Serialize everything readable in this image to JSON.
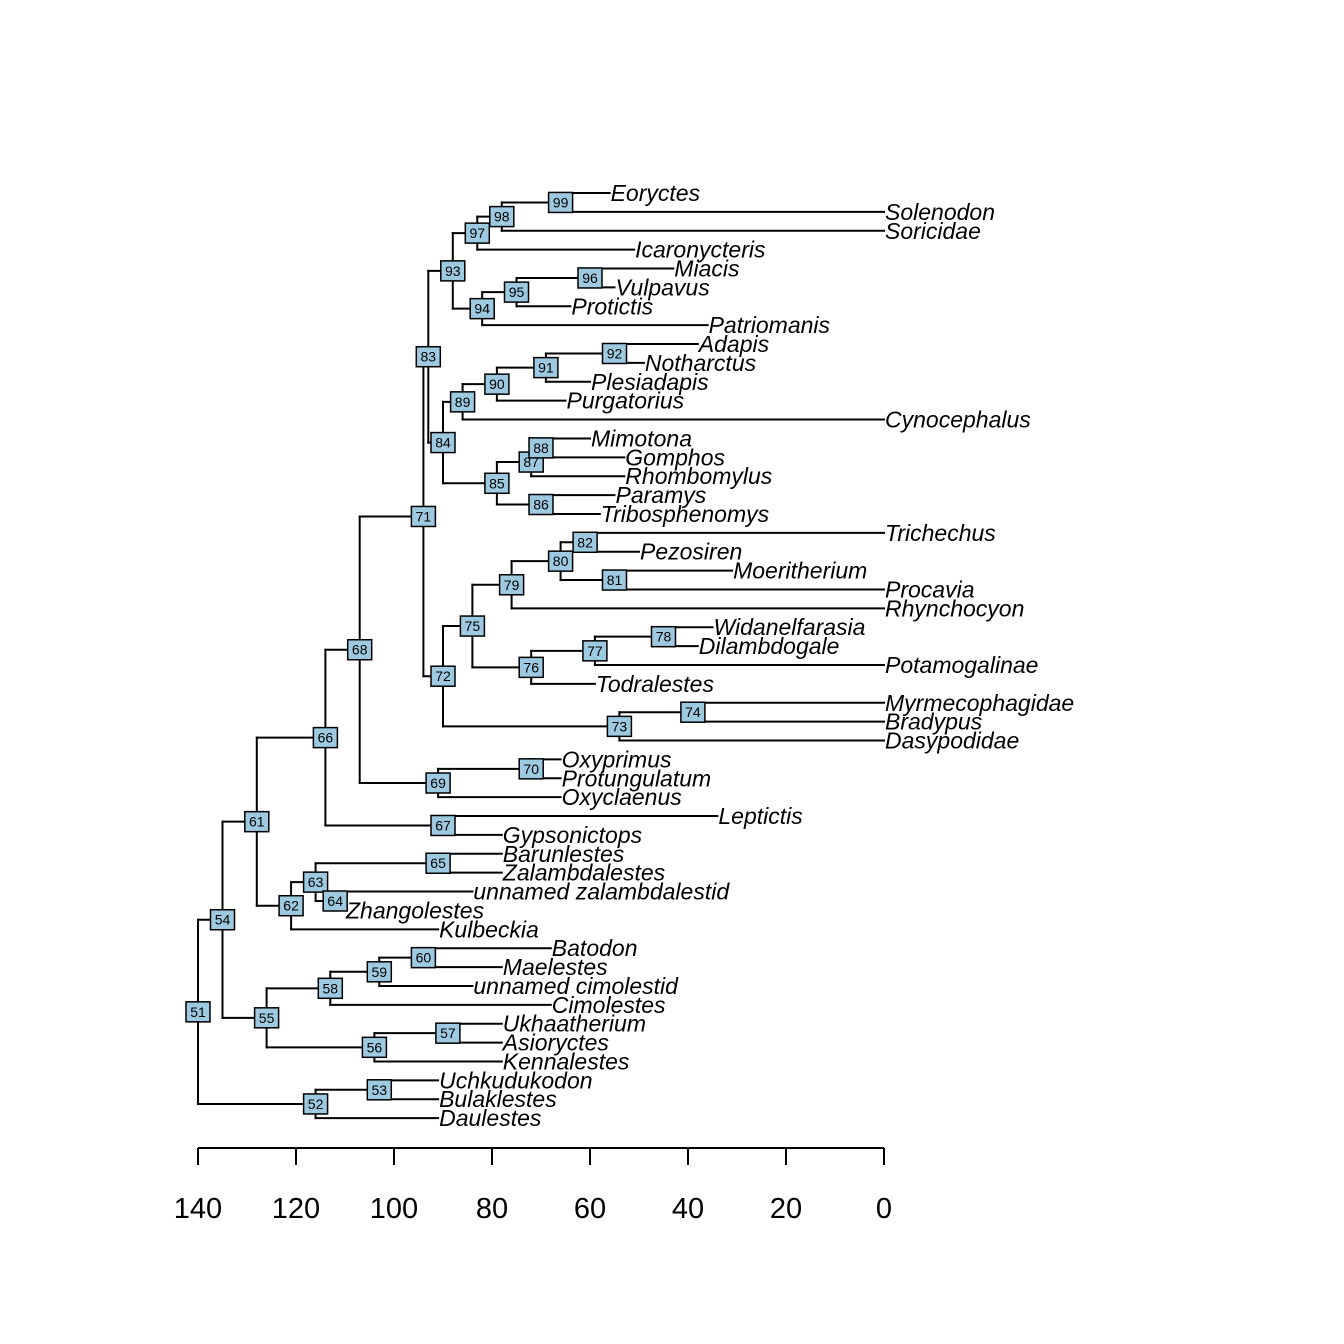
{
  "chart_data": {
    "type": "phylogenetic-tree",
    "title": "",
    "x_axis": {
      "direction": "reversed",
      "range": [
        140,
        0
      ],
      "ticks": [
        140,
        120,
        100,
        80,
        60,
        40,
        20,
        0
      ],
      "tick_labels": [
        "140",
        "120",
        "100",
        "80",
        "60",
        "40",
        "20",
        "0"
      ],
      "label": ""
    },
    "node_color": "#9ecae1",
    "tips": [
      {
        "name": "Eoryctes",
        "age": 56
      },
      {
        "name": "Solenodon",
        "age": 0
      },
      {
        "name": "Soricidae",
        "age": 0
      },
      {
        "name": "Icaronycteris",
        "age": 51
      },
      {
        "name": "Miacis",
        "age": 43
      },
      {
        "name": "Vulpavus",
        "age": 55
      },
      {
        "name": "Protictis",
        "age": 64
      },
      {
        "name": "Patriomanis",
        "age": 36
      },
      {
        "name": "Adapis",
        "age": 38
      },
      {
        "name": "Notharctus",
        "age": 49
      },
      {
        "name": "Plesiadapis",
        "age": 60
      },
      {
        "name": "Purgatorius",
        "age": 65
      },
      {
        "name": "Cynocephalus",
        "age": 0
      },
      {
        "name": "Mimotona",
        "age": 60
      },
      {
        "name": "Gomphos",
        "age": 53
      },
      {
        "name": "Rhombomylus",
        "age": 53
      },
      {
        "name": "Paramys",
        "age": 55
      },
      {
        "name": "Tribosphenomys",
        "age": 58
      },
      {
        "name": "Trichechus",
        "age": 0
      },
      {
        "name": "Pezosiren",
        "age": 50
      },
      {
        "name": "Moeritherium",
        "age": 31
      },
      {
        "name": "Procavia",
        "age": 0
      },
      {
        "name": "Rhynchocyon",
        "age": 0
      },
      {
        "name": "Widanelfarasia",
        "age": 35
      },
      {
        "name": "Dilambdogale",
        "age": 38
      },
      {
        "name": "Potamogalinae",
        "age": 0
      },
      {
        "name": "Todralestes",
        "age": 59
      },
      {
        "name": "Myrmecophagidae",
        "age": 0
      },
      {
        "name": "Bradypus",
        "age": 0
      },
      {
        "name": "Dasypodidae",
        "age": 0
      },
      {
        "name": "Oxyprimus",
        "age": 66
      },
      {
        "name": "Protungulatum",
        "age": 66
      },
      {
        "name": "Oxyclaenus",
        "age": 66
      },
      {
        "name": "Leptictis",
        "age": 34
      },
      {
        "name": "Gypsonictops",
        "age": 78
      },
      {
        "name": "Barunlestes",
        "age": 78
      },
      {
        "name": "Zalambdalestes",
        "age": 78
      },
      {
        "name": "unnamed zalambdalestid",
        "age": 84
      },
      {
        "name": "Zhangolestes",
        "age": 110
      },
      {
        "name": "Kulbeckia",
        "age": 91
      },
      {
        "name": "Batodon",
        "age": 68
      },
      {
        "name": "Maelestes",
        "age": 78
      },
      {
        "name": "unnamed cimolestid",
        "age": 84
      },
      {
        "name": "Cimolestes",
        "age": 68
      },
      {
        "name": "Ukhaatherium",
        "age": 78
      },
      {
        "name": "Asioryctes",
        "age": 78
      },
      {
        "name": "Kennalestes",
        "age": 78
      },
      {
        "name": "Uchkudukodon",
        "age": 91
      },
      {
        "name": "Bulaklestes",
        "age": 91
      },
      {
        "name": "Daulestes",
        "age": 91
      }
    ],
    "internal_nodes": [
      {
        "id": "51",
        "age": 140,
        "children": [
          "54",
          "52"
        ]
      },
      {
        "id": "52",
        "age": 116,
        "children": [
          "53",
          "Daulestes"
        ]
      },
      {
        "id": "53",
        "age": 103,
        "children": [
          "Uchkudukodon",
          "Bulaklestes"
        ]
      },
      {
        "id": "54",
        "age": 135,
        "children": [
          "61",
          "55"
        ]
      },
      {
        "id": "55",
        "age": 126,
        "children": [
          "58",
          "56"
        ]
      },
      {
        "id": "56",
        "age": 104,
        "children": [
          "57",
          "Kennalestes"
        ]
      },
      {
        "id": "57",
        "age": 89,
        "children": [
          "Ukhaatherium",
          "Asioryctes"
        ]
      },
      {
        "id": "58",
        "age": 113,
        "children": [
          "59",
          "Cimolestes"
        ]
      },
      {
        "id": "59",
        "age": 103,
        "children": [
          "60",
          "unnamed cimolestid"
        ]
      },
      {
        "id": "60",
        "age": 94,
        "children": [
          "Batodon",
          "Maelestes"
        ]
      },
      {
        "id": "61",
        "age": 128,
        "children": [
          "66",
          "62"
        ]
      },
      {
        "id": "62",
        "age": 121,
        "children": [
          "63",
          "Kulbeckia"
        ]
      },
      {
        "id": "63",
        "age": 116,
        "children": [
          "65",
          "64"
        ]
      },
      {
        "id": "64",
        "age": 112,
        "children": [
          "unnamed zalambdalestid",
          "Zhangolestes"
        ]
      },
      {
        "id": "65",
        "age": 91,
        "children": [
          "Barunlestes",
          "Zalambdalestes"
        ]
      },
      {
        "id": "66",
        "age": 114,
        "children": [
          "68",
          "67"
        ]
      },
      {
        "id": "67",
        "age": 90,
        "children": [
          "Leptictis",
          "Gypsonictops"
        ]
      },
      {
        "id": "68",
        "age": 107,
        "children": [
          "71",
          "69"
        ]
      },
      {
        "id": "69",
        "age": 91,
        "children": [
          "70",
          "Oxyclaenus"
        ]
      },
      {
        "id": "70",
        "age": 72,
        "children": [
          "Oxyprimus",
          "Protungulatum"
        ]
      },
      {
        "id": "71",
        "age": 94,
        "children": [
          "83",
          "72"
        ]
      },
      {
        "id": "72",
        "age": 90,
        "children": [
          "75",
          "73"
        ]
      },
      {
        "id": "73",
        "age": 54,
        "children": [
          "74",
          "Dasypodidae"
        ]
      },
      {
        "id": "74",
        "age": 39,
        "children": [
          "Myrmecophagidae",
          "Bradypus"
        ]
      },
      {
        "id": "75",
        "age": 84,
        "children": [
          "79",
          "76"
        ]
      },
      {
        "id": "76",
        "age": 72,
        "children": [
          "77",
          "Todralestes"
        ]
      },
      {
        "id": "77",
        "age": 59,
        "children": [
          "78",
          "Potamogalinae"
        ]
      },
      {
        "id": "78",
        "age": 45,
        "children": [
          "Widanelfarasia",
          "Dilambdogale"
        ]
      },
      {
        "id": "79",
        "age": 76,
        "children": [
          "80",
          "Rhynchocyon"
        ]
      },
      {
        "id": "80",
        "age": 66,
        "children": [
          "82",
          "81"
        ]
      },
      {
        "id": "81",
        "age": 55,
        "children": [
          "Moeritherium",
          "Procavia"
        ]
      },
      {
        "id": "82",
        "age": 61,
        "children": [
          "Trichechus",
          "Pezosiren"
        ]
      },
      {
        "id": "83",
        "age": 93,
        "children": [
          "93",
          "84"
        ]
      },
      {
        "id": "84",
        "age": 90,
        "children": [
          "89",
          "85"
        ]
      },
      {
        "id": "85",
        "age": 79,
        "children": [
          "87",
          "86"
        ]
      },
      {
        "id": "86",
        "age": 70,
        "children": [
          "Paramys",
          "Tribosphenomys"
        ]
      },
      {
        "id": "87",
        "age": 72,
        "children": [
          "88",
          "Rhombomylus"
        ]
      },
      {
        "id": "88",
        "age": 70,
        "children": [
          "Mimotona",
          "Gomphos"
        ]
      },
      {
        "id": "89",
        "age": 86,
        "children": [
          "90",
          "Cynocephalus"
        ]
      },
      {
        "id": "90",
        "age": 79,
        "children": [
          "91",
          "Purgatorius"
        ]
      },
      {
        "id": "91",
        "age": 69,
        "children": [
          "92",
          "Plesiadapis"
        ]
      },
      {
        "id": "92",
        "age": 55,
        "children": [
          "Adapis",
          "Notharctus"
        ]
      },
      {
        "id": "93",
        "age": 88,
        "children": [
          "97",
          "94"
        ]
      },
      {
        "id": "94",
        "age": 82,
        "children": [
          "95",
          "Patriomanis"
        ]
      },
      {
        "id": "95",
        "age": 75,
        "children": [
          "96",
          "Protictis"
        ]
      },
      {
        "id": "96",
        "age": 60,
        "children": [
          "Miacis",
          "Vulpavus"
        ]
      },
      {
        "id": "97",
        "age": 83,
        "children": [
          "98",
          "Icaronycteris"
        ]
      },
      {
        "id": "98",
        "age": 78,
        "children": [
          "99",
          "Soricidae"
        ]
      },
      {
        "id": "99",
        "age": 66,
        "children": [
          "Eoryctes",
          "Solenodon"
        ]
      }
    ]
  }
}
